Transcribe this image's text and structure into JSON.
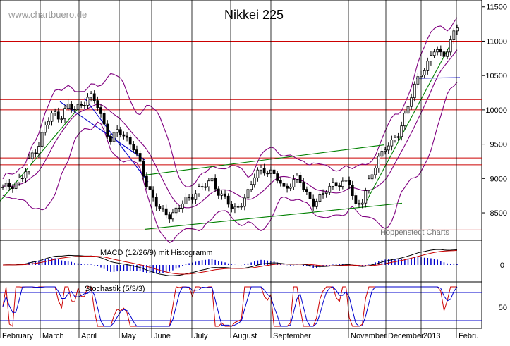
{
  "chart_data": {
    "type": "candlestick",
    "title": "Nikkei 225",
    "watermark": "www.chartbuero.de",
    "credit": "Hoppenstedt Charts",
    "x_labels": [
      "February",
      "March",
      "April",
      "May",
      "June",
      "July",
      "August",
      "September",
      "November",
      "December",
      "2013",
      "Febru"
    ],
    "price_ticks": [
      8500,
      9000,
      9500,
      10000,
      10500,
      11000,
      11500
    ],
    "ylim": [
      8100,
      11600
    ],
    "horizontal_levels": [
      11000,
      10150,
      10000,
      9300,
      9200,
      9050,
      8250
    ],
    "price_series_approx": [
      8850,
      8900,
      8950,
      9050,
      9350,
      9500,
      9800,
      9950,
      9900,
      10050,
      10000,
      10100,
      10200,
      10100,
      9800,
      9550,
      9700,
      9600,
      9500,
      9200,
      8900,
      8700,
      8500,
      8450,
      8550,
      8650,
      8700,
      8850,
      8900,
      8950,
      8800,
      8700,
      8500,
      8650,
      8800,
      9050,
      9150,
      9100,
      9000,
      8850,
      8950,
      9000,
      8800,
      8650,
      8700,
      8850,
      8950,
      8900,
      8950,
      8600,
      8700,
      9000,
      9300,
      9450,
      9500,
      9700,
      10000,
      10300,
      10550,
      10700,
      10900,
      10750,
      11000,
      11200
    ],
    "macd_label": "MACD (12/26/9) mit Histogramm",
    "macd_ticks": [
      0
    ],
    "stoch_label": "Stochastik (5/3/3)",
    "stoch_ticks": [
      50
    ],
    "colors": {
      "level_line": "#cc0000",
      "band": "#800080",
      "trend_green": "#008000",
      "trend_blue": "#0000cc",
      "candles": "#000000",
      "macd_hist": "#0000cc",
      "stoch_line": "#cc0000",
      "stoch_signal": "#0000cc"
    }
  }
}
